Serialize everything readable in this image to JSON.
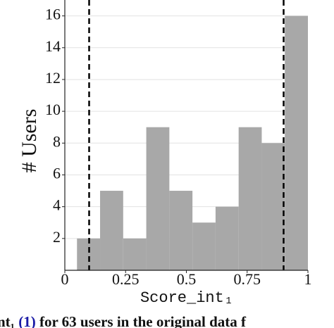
{
  "chart_data": {
    "type": "histogram",
    "xlabel": "Score_int₁",
    "ylabel": "# Users",
    "bins": [
      0.05,
      0.145,
      0.24,
      0.335,
      0.43,
      0.525,
      0.62,
      0.715,
      0.81,
      0.905,
      1.0
    ],
    "values": [
      2,
      5,
      2,
      9,
      5,
      3,
      4,
      9,
      8,
      16
    ],
    "color": "#a8a8a8",
    "xlim": [
      0,
      1
    ],
    "ylim": [
      0,
      17
    ],
    "xticks": [
      0,
      0.25,
      0.5,
      0.75,
      1
    ],
    "yticks": [
      2,
      4,
      6,
      8,
      10,
      12,
      14,
      16
    ],
    "grid": true,
    "vlines": [
      0.1,
      0.9
    ],
    "caption": [
      "nt₁ ",
      "(1)",
      " for 63 users in the original data f"
    ]
  }
}
